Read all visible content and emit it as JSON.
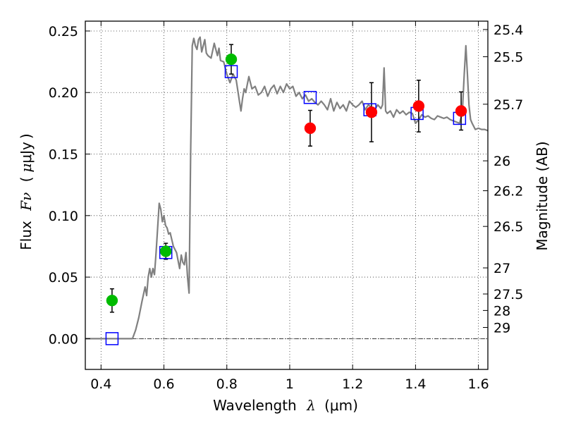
{
  "chart_data": {
    "type": "line",
    "title": "",
    "xlabel": {
      "main": "Wavelength",
      "symbol": "λ",
      "unit": "(μm)"
    },
    "ylabel": {
      "main": "Flux",
      "symbol": "Fν",
      "unit": "μJy"
    },
    "y2label": "Magnitude (AB)",
    "xlim": [
      0.35,
      1.63
    ],
    "ylim": [
      -0.025,
      0.258
    ],
    "grid": true,
    "x_ticks": [
      0.4,
      0.6,
      0.8,
      1.0,
      1.2,
      1.4,
      1.6
    ],
    "x_tick_labels": [
      "0.4",
      "0.6",
      "0.8",
      "1",
      "1.2",
      "1.4",
      "1.6"
    ],
    "y_ticks": [
      0.0,
      0.05,
      0.1,
      0.15,
      0.2,
      0.25
    ],
    "y_tick_labels": [
      "0.00",
      "0.05",
      "0.10",
      "0.15",
      "0.20",
      "0.25"
    ],
    "mag_ticks": [
      {
        "label": "25.4",
        "flux": 0.2512
      },
      {
        "label": "25.5",
        "flux": 0.2291
      },
      {
        "label": "25.7",
        "flux": 0.1905
      },
      {
        "label": "26",
        "flux": 0.1445
      },
      {
        "label": "26.2",
        "flux": 0.1202
      },
      {
        "label": "26.5",
        "flux": 0.0912
      },
      {
        "label": "27",
        "flux": 0.0575
      },
      {
        "label": "27.5",
        "flux": 0.0363
      },
      {
        "label": "28",
        "flux": 0.0229
      },
      {
        "label": "29",
        "flux": 0.0091
      }
    ],
    "colors": {
      "model": "#808080",
      "green": "#00bb00",
      "red": "#ff0000",
      "square": "#0000ff",
      "error": "#000000",
      "zero_line": "#000000"
    },
    "series": [
      {
        "name": "model spectrum",
        "kind": "line",
        "x": [
          0.35,
          0.5,
          0.51,
          0.52,
          0.53,
          0.54,
          0.545,
          0.55,
          0.555,
          0.56,
          0.565,
          0.57,
          0.575,
          0.58,
          0.585,
          0.59,
          0.595,
          0.6,
          0.605,
          0.61,
          0.615,
          0.62,
          0.63,
          0.64,
          0.65,
          0.655,
          0.66,
          0.665,
          0.67,
          0.675,
          0.68,
          0.685,
          0.69,
          0.695,
          0.7,
          0.705,
          0.71,
          0.715,
          0.72,
          0.725,
          0.73,
          0.735,
          0.74,
          0.75,
          0.76,
          0.77,
          0.775,
          0.78,
          0.79,
          0.8,
          0.81,
          0.82,
          0.83,
          0.84,
          0.845,
          0.85,
          0.855,
          0.86,
          0.87,
          0.88,
          0.89,
          0.9,
          0.91,
          0.92,
          0.93,
          0.94,
          0.95,
          0.96,
          0.97,
          0.98,
          0.99,
          1.0,
          1.01,
          1.02,
          1.03,
          1.04,
          1.05,
          1.06,
          1.07,
          1.08,
          1.09,
          1.1,
          1.11,
          1.12,
          1.13,
          1.14,
          1.15,
          1.16,
          1.17,
          1.18,
          1.19,
          1.2,
          1.21,
          1.22,
          1.23,
          1.24,
          1.25,
          1.26,
          1.27,
          1.28,
          1.29,
          1.295,
          1.3,
          1.305,
          1.31,
          1.32,
          1.33,
          1.34,
          1.35,
          1.36,
          1.37,
          1.38,
          1.39,
          1.4,
          1.41,
          1.42,
          1.43,
          1.44,
          1.45,
          1.46,
          1.47,
          1.48,
          1.49,
          1.5,
          1.51,
          1.52,
          1.53,
          1.54,
          1.545,
          1.55,
          1.555,
          1.56,
          1.565,
          1.57,
          1.575,
          1.58,
          1.59,
          1.6,
          1.61,
          1.62,
          1.63
        ],
        "y": [
          0.0,
          0.0,
          0.007,
          0.017,
          0.03,
          0.042,
          0.035,
          0.05,
          0.057,
          0.05,
          0.057,
          0.052,
          0.07,
          0.09,
          0.11,
          0.105,
          0.095,
          0.1,
          0.092,
          0.09,
          0.085,
          0.086,
          0.075,
          0.07,
          0.057,
          0.068,
          0.062,
          0.06,
          0.07,
          0.05,
          0.037,
          0.15,
          0.238,
          0.244,
          0.238,
          0.235,
          0.243,
          0.245,
          0.233,
          0.238,
          0.243,
          0.232,
          0.23,
          0.228,
          0.24,
          0.23,
          0.236,
          0.226,
          0.225,
          0.215,
          0.208,
          0.215,
          0.21,
          0.193,
          0.185,
          0.195,
          0.203,
          0.2,
          0.213,
          0.203,
          0.205,
          0.198,
          0.2,
          0.205,
          0.197,
          0.203,
          0.206,
          0.199,
          0.205,
          0.2,
          0.207,
          0.203,
          0.205,
          0.197,
          0.2,
          0.195,
          0.198,
          0.193,
          0.195,
          0.192,
          0.19,
          0.193,
          0.19,
          0.186,
          0.195,
          0.185,
          0.192,
          0.187,
          0.19,
          0.185,
          0.193,
          0.19,
          0.188,
          0.19,
          0.193,
          0.186,
          0.19,
          0.188,
          0.186,
          0.19,
          0.187,
          0.19,
          0.22,
          0.185,
          0.183,
          0.185,
          0.18,
          0.186,
          0.183,
          0.185,
          0.182,
          0.184,
          0.183,
          0.175,
          0.178,
          0.182,
          0.18,
          0.181,
          0.179,
          0.178,
          0.181,
          0.18,
          0.179,
          0.18,
          0.178,
          0.177,
          0.176,
          0.175,
          0.18,
          0.19,
          0.215,
          0.238,
          0.215,
          0.19,
          0.178,
          0.175,
          0.17,
          0.171,
          0.17,
          0.17,
          0.169
        ]
      },
      {
        "name": "green photometry",
        "kind": "scatter",
        "marker": "circle",
        "color": "green",
        "x": [
          0.435,
          0.606,
          0.814
        ],
        "y": [
          0.031,
          0.071,
          0.227
        ],
        "err": [
          0.0095,
          0.0065,
          0.012
        ]
      },
      {
        "name": "red photometry",
        "kind": "scatter",
        "marker": "circle",
        "color": "red",
        "x": [
          1.065,
          1.26,
          1.41,
          1.545
        ],
        "y": [
          0.171,
          0.184,
          0.189,
          0.185
        ],
        "err": [
          0.0145,
          0.024,
          0.021,
          0.0155
        ]
      },
      {
        "name": "model band fluxes",
        "kind": "scatter",
        "marker": "square",
        "color": "square",
        "x": [
          0.435,
          0.606,
          0.814,
          1.065,
          1.255,
          1.405,
          1.54
        ],
        "y": [
          0.0,
          0.07,
          0.217,
          0.196,
          0.186,
          0.183,
          0.179
        ]
      }
    ]
  }
}
